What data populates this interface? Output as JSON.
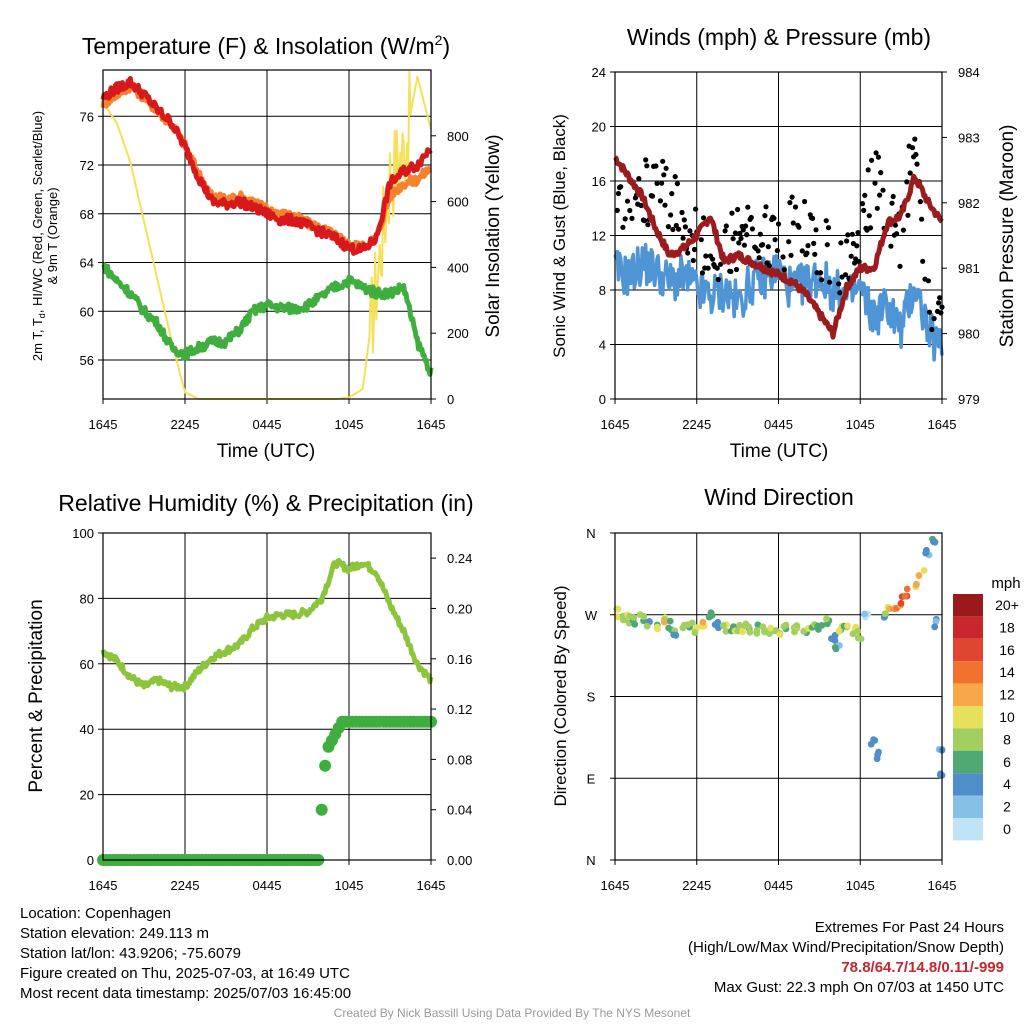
{
  "panels": {
    "temp": {
      "title": "Temperature (F) & Insolation (W/m",
      "title_sup": "2",
      "title_close": ")",
      "ylabel_line1": "2m T, T",
      "ylabel_sub": "d",
      "ylabel_line1_rest": ", HI/WC (Red, Green, Scarlet/Blue)",
      "ylabel_line2": "& 9m T (Orange)",
      "y2label": "Solar Insolation (Yellow)",
      "xlabel": "Time (UTC)"
    },
    "wind": {
      "title": "Winds (mph) & Pressure (mb)",
      "ylabel": "Sonic Wind & Gust (Blue, Black)",
      "y2label": "Station Pressure (Maroon)",
      "xlabel": "Time (UTC)"
    },
    "rh": {
      "title": "Relative Humidity (%) & Precipitation (in)",
      "ylabel": "Percent & Precipitation"
    },
    "dir": {
      "title": "Wind Direction",
      "ylabel": "Direction (Colored By Speed)",
      "colorbar_title": "mph"
    }
  },
  "chart_data": [
    {
      "type": "line",
      "title": "Temperature (F) & Insolation (W/m2)",
      "xlabel": "Time (UTC)",
      "ylabel": "2m T, Td, HI/WC (Red, Green, Scarlet/Blue) & 9m T (Orange)",
      "y2label": "Solar Insolation (Yellow)",
      "x_ticks": [
        "1645",
        "2245",
        "0445",
        "1045",
        "1645"
      ],
      "y_ticks": [
        56,
        60,
        64,
        68,
        72,
        76
      ],
      "y2_ticks": [
        0,
        200,
        400,
        600,
        800
      ],
      "ylim": [
        52.8,
        79.8
      ],
      "y2lim": [
        0,
        1000
      ],
      "x_hours": [
        0,
        1,
        2,
        3,
        4,
        5,
        6,
        7,
        8,
        9,
        10,
        11,
        12,
        13,
        14,
        15,
        16,
        17,
        18,
        19,
        20,
        21,
        22,
        23,
        24
      ],
      "series": [
        {
          "name": "2m T",
          "color": "#d7191c",
          "axis": "left",
          "values": [
            77.5,
            78.3,
            78.8,
            77.8,
            76.5,
            75.5,
            73.5,
            71.0,
            69.0,
            68.8,
            69.0,
            68.5,
            68.0,
            67.5,
            67.5,
            67.0,
            66.5,
            66.0,
            65.2,
            65.0,
            66.0,
            70.5,
            71.5,
            72.0,
            73.5
          ]
        },
        {
          "name": "9m T",
          "color": "#f58231",
          "axis": "left",
          "values": [
            77.0,
            77.8,
            78.5,
            77.6,
            76.4,
            75.4,
            73.6,
            71.3,
            69.4,
            69.2,
            69.4,
            69.0,
            68.4,
            68.0,
            67.8,
            67.2,
            66.8,
            66.2,
            65.5,
            65.3,
            66.0,
            69.5,
            70.5,
            70.8,
            71.8
          ]
        },
        {
          "name": "Td",
          "color": "#3fae3f",
          "axis": "left",
          "values": [
            63.8,
            62.5,
            61.5,
            60.0,
            59.0,
            57.0,
            56.5,
            57.0,
            57.5,
            57.5,
            58.5,
            60.0,
            60.5,
            60.3,
            60.2,
            60.5,
            61.2,
            62.0,
            62.5,
            62.0,
            61.5,
            61.5,
            62.0,
            57.5,
            55.0
          ]
        },
        {
          "name": "Solar Insolation",
          "color": "#f5e05a",
          "axis": "right",
          "values": [
            900,
            840,
            720,
            540,
            360,
            180,
            20,
            0,
            0,
            0,
            0,
            0,
            0,
            0,
            0,
            0,
            0,
            0,
            5,
            30,
            350,
            680,
            750,
            980,
            820
          ]
        }
      ]
    },
    {
      "type": "line",
      "title": "Winds (mph) & Pressure (mb)",
      "xlabel": "Time (UTC)",
      "ylabel": "Sonic Wind & Gust (Blue, Black)",
      "y2label": "Station Pressure (Maroon)",
      "x_ticks": [
        "1645",
        "2245",
        "0445",
        "1045",
        "1645"
      ],
      "y_ticks": [
        0,
        4,
        8,
        12,
        16,
        20,
        24
      ],
      "y2_ticks": [
        979,
        980,
        981,
        982,
        983,
        984
      ],
      "ylim": [
        0,
        24
      ],
      "y2lim": [
        979,
        984
      ],
      "x_hours": [
        0,
        1,
        2,
        3,
        4,
        5,
        6,
        7,
        8,
        9,
        10,
        11,
        12,
        13,
        14,
        15,
        16,
        17,
        18,
        19,
        20,
        21,
        22,
        23,
        24
      ],
      "series": [
        {
          "name": "Sonic Wind",
          "color": "#4f94d4",
          "axis": "left",
          "values": [
            9.5,
            9.0,
            10.0,
            9.5,
            8.5,
            9.0,
            8.0,
            7.5,
            8.0,
            7.0,
            8.5,
            9.0,
            9.5,
            8.0,
            8.5,
            9.0,
            8.0,
            7.5,
            8.0,
            6.0,
            7.0,
            5.0,
            8.5,
            5.0,
            3.5
          ]
        },
        {
          "name": "Gust",
          "color": "#000000",
          "axis": "left",
          "values": [
            16.0,
            14.0,
            15.0,
            15.5,
            14.5,
            13.5,
            12.0,
            11.0,
            10.0,
            12.0,
            12.5,
            12.5,
            11.5,
            12.5,
            12.0,
            11.0,
            10.5,
            10.0,
            12.0,
            16.0,
            14.0,
            12.0,
            19.0,
            8.0,
            5.0
          ]
        },
        {
          "name": "Station Pressure",
          "color": "#9b1b1e",
          "axis": "right",
          "values": [
            982.7,
            982.4,
            982.1,
            981.6,
            981.2,
            981.3,
            981.5,
            981.8,
            981.1,
            981.2,
            981.1,
            981.0,
            980.9,
            980.8,
            980.6,
            980.3,
            980.0,
            980.7,
            981.0,
            981.0,
            981.7,
            981.8,
            982.4,
            982.0,
            981.7
          ]
        }
      ]
    },
    {
      "type": "line",
      "title": "Relative Humidity (%) & Precipitation (in)",
      "xlabel": "",
      "ylabel": "Percent & Precipitation",
      "x_ticks": [
        "1645",
        "2245",
        "0445",
        "1045",
        "1645"
      ],
      "y_ticks": [
        0,
        20,
        40,
        60,
        80,
        100
      ],
      "y2_ticks": [
        "0.00",
        "0.04",
        "0.08",
        "0.12",
        "0.16",
        "0.20",
        "0.24"
      ],
      "ylim": [
        0,
        100
      ],
      "y2lim": [
        0,
        0.26
      ],
      "series": [
        {
          "name": "Relative Humidity",
          "color": "#8cc43c",
          "axis": "left",
          "x": [
            0,
            1,
            2,
            3,
            4,
            5,
            6,
            7,
            8,
            9,
            10,
            11,
            12,
            13,
            14,
            15,
            16,
            17,
            18,
            19,
            20,
            21,
            22,
            23,
            24
          ],
          "values": [
            64,
            61,
            56,
            53,
            55,
            53,
            53,
            58,
            62,
            64,
            66,
            71,
            74,
            75,
            75,
            76,
            80,
            91,
            89,
            91,
            88,
            78,
            70,
            60,
            55
          ]
        },
        {
          "name": "Precipitation",
          "color": "#3fae3f",
          "axis": "right",
          "x": [
            0,
            15.9,
            16.0,
            16.1,
            16.3,
            16.5,
            17.0,
            17.5,
            24
          ],
          "values": [
            0,
            0,
            0.04,
            0.06,
            0.08,
            0.09,
            0.1,
            0.11,
            0.11
          ]
        }
      ]
    },
    {
      "type": "scatter",
      "title": "Wind Direction",
      "xlabel": "",
      "ylabel": "Direction (Colored By Speed)",
      "x_ticks": [
        "1645",
        "2245",
        "0445",
        "1045",
        "1645"
      ],
      "y_ticks": [
        "N",
        "E",
        "S",
        "W",
        "N"
      ],
      "ylim": [
        0,
        360
      ],
      "colorbar": {
        "title": "mph",
        "labels": [
          "20+",
          "18",
          "16",
          "14",
          "12",
          "10",
          "8",
          "6",
          "4",
          "2",
          "0"
        ],
        "colors": [
          "#99191c",
          "#c8272d",
          "#e04530",
          "#f0722e",
          "#f7a94a",
          "#e6e05a",
          "#a2cf5f",
          "#4fa872",
          "#4f8ec8",
          "#86c0e6",
          "#bfe4f6"
        ]
      },
      "points": [
        {
          "x": 0.2,
          "dir": 272,
          "speed": 10
        },
        {
          "x": 0.6,
          "dir": 268,
          "speed": 8
        },
        {
          "x": 1.0,
          "dir": 265,
          "speed": 10
        },
        {
          "x": 1.5,
          "dir": 262,
          "speed": 6
        },
        {
          "x": 2.0,
          "dir": 267,
          "speed": 8
        },
        {
          "x": 2.5,
          "dir": 260,
          "speed": 6
        },
        {
          "x": 3.0,
          "dir": 258,
          "speed": 8
        },
        {
          "x": 3.5,
          "dir": 265,
          "speed": 10
        },
        {
          "x": 4.0,
          "dir": 258,
          "speed": 6
        },
        {
          "x": 4.5,
          "dir": 252,
          "speed": 6
        },
        {
          "x": 5.0,
          "dir": 255,
          "speed": 8
        },
        {
          "x": 5.5,
          "dir": 258,
          "speed": 6
        },
        {
          "x": 6.0,
          "dir": 255,
          "speed": 8
        },
        {
          "x": 6.5,
          "dir": 262,
          "speed": 10
        },
        {
          "x": 7.0,
          "dir": 270,
          "speed": 6
        },
        {
          "x": 7.5,
          "dir": 260,
          "speed": 4
        },
        {
          "x": 8.0,
          "dir": 256,
          "speed": 8
        },
        {
          "x": 8.5,
          "dir": 255,
          "speed": 6
        },
        {
          "x": 9.0,
          "dir": 254,
          "speed": 8
        },
        {
          "x": 9.5,
          "dir": 256,
          "speed": 8
        },
        {
          "x": 10.0,
          "dir": 255,
          "speed": 8
        },
        {
          "x": 10.5,
          "dir": 254,
          "speed": 8
        },
        {
          "x": 11.0,
          "dir": 256,
          "speed": 8
        },
        {
          "x": 11.5,
          "dir": 254,
          "speed": 8
        },
        {
          "x": 12.0,
          "dir": 252,
          "speed": 8
        },
        {
          "x": 12.5,
          "dir": 254,
          "speed": 8
        },
        {
          "x": 13.0,
          "dir": 256,
          "speed": 8
        },
        {
          "x": 13.5,
          "dir": 254,
          "speed": 8
        },
        {
          "x": 14.0,
          "dir": 252,
          "speed": 8
        },
        {
          "x": 14.5,
          "dir": 255,
          "speed": 8
        },
        {
          "x": 15.0,
          "dir": 258,
          "speed": 6
        },
        {
          "x": 15.5,
          "dir": 262,
          "speed": 6
        },
        {
          "x": 16.0,
          "dir": 245,
          "speed": 4
        },
        {
          "x": 16.3,
          "dir": 232,
          "speed": 4
        },
        {
          "x": 16.6,
          "dir": 255,
          "speed": 8
        },
        {
          "x": 17.0,
          "dir": 258,
          "speed": 8
        },
        {
          "x": 17.5,
          "dir": 252,
          "speed": 10
        },
        {
          "x": 18.0,
          "dir": 248,
          "speed": 8
        },
        {
          "x": 18.5,
          "dir": 270,
          "speed": 2
        },
        {
          "x": 19.0,
          "dir": 130,
          "speed": 4
        },
        {
          "x": 19.3,
          "dir": 115,
          "speed": 4
        },
        {
          "x": 19.7,
          "dir": 270,
          "speed": 4
        },
        {
          "x": 20.0,
          "dir": 275,
          "speed": 10
        },
        {
          "x": 20.5,
          "dir": 275,
          "speed": 12
        },
        {
          "x": 21.0,
          "dir": 285,
          "speed": 14
        },
        {
          "x": 21.5,
          "dir": 295,
          "speed": 14
        },
        {
          "x": 22.0,
          "dir": 305,
          "speed": 12
        },
        {
          "x": 22.5,
          "dir": 315,
          "speed": 10
        },
        {
          "x": 23.0,
          "dir": 340,
          "speed": 4
        },
        {
          "x": 23.3,
          "dir": 350,
          "speed": 4
        },
        {
          "x": 23.6,
          "dir": 260,
          "speed": 2
        },
        {
          "x": 23.9,
          "dir": 120,
          "speed": 4
        },
        {
          "x": 24.0,
          "dir": 90,
          "speed": 4
        }
      ]
    }
  ],
  "info": {
    "location": "Location: Copenhagen",
    "elevation": "Station elevation: 249.113 m",
    "latlon": "Station lat/lon: 43.9206; -75.6079",
    "created": "Figure created on Thu, 2025-07-03, at 16:49 UTC",
    "recent": "Most recent data timestamp: 2025/07/03 16:45:00"
  },
  "extremes": {
    "heading": "Extremes For Past 24 Hours",
    "subheading": "(High/Low/Max Wind/Precipitation/Snow Depth)",
    "values": "78.8/64.7/14.8/0.11/-999",
    "max_gust": "Max Gust: 22.3 mph On 07/03 at 1450 UTC"
  },
  "credit": "Created By Nick Bassill Using Data Provided By The NYS Mesonet"
}
